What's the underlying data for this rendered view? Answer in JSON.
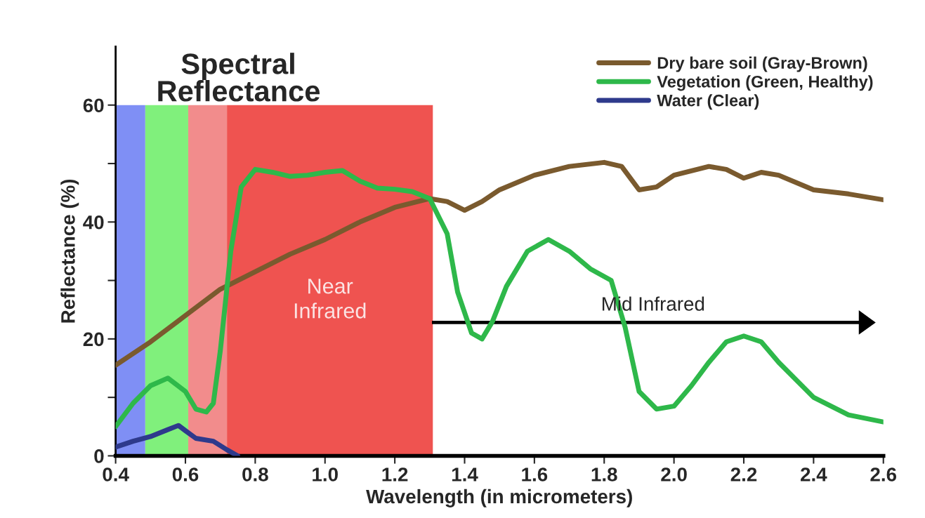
{
  "chart_data": {
    "type": "line",
    "title": "Spectral\nReflectance",
    "xlabel": "Wavelength (in micrometers)",
    "ylabel": "Reflectance (%)",
    "xlim": [
      0.4,
      2.6
    ],
    "xticks": [
      {
        "value": 0.4,
        "label": "0.4"
      },
      {
        "value": 0.6,
        "label": "0.6"
      },
      {
        "value": 0.8,
        "label": "0.8"
      },
      {
        "value": 1.0,
        "label": "1.0"
      },
      {
        "value": 1.2,
        "label": "1.2"
      },
      {
        "value": 1.4,
        "label": "1.4"
      },
      {
        "value": 1.6,
        "label": "1.6"
      },
      {
        "value": 1.8,
        "label": "1.8"
      },
      {
        "value": 2.0,
        "label": "2.0"
      },
      {
        "value": 2.2,
        "label": "2.2"
      },
      {
        "value": 2.4,
        "label": "2.4"
      },
      {
        "value": 2.6,
        "label": "2.6"
      }
    ],
    "ylim": [
      0,
      70
    ],
    "yticks": [
      0,
      {
        "value": 10,
        "label": null
      },
      20,
      {
        "value": 30,
        "label": null
      },
      40,
      {
        "value": 50,
        "label": null
      },
      60
    ],
    "grid": false,
    "legend": "top right",
    "marker": "none",
    "line_style": "solid",
    "bands": [
      {
        "axis": "x",
        "from": 0.4,
        "to": 0.485,
        "label": null,
        "color": "#7f8ff5"
      },
      {
        "axis": "x",
        "from": 0.485,
        "to": 0.608,
        "label": null,
        "color": "#80f07c"
      },
      {
        "axis": "x",
        "from": 0.608,
        "to": 0.719,
        "label": null,
        "color": "#f28c8c"
      },
      {
        "axis": "x",
        "from": 0.719,
        "to": 1.309,
        "label": "Near\nInfrared",
        "color": "#ef5350"
      }
    ],
    "annotations": [
      "Mid Infrared"
    ],
    "series": [
      {
        "name": "Dry bare soil (Gray-Brown)",
        "color": "#7a5a2e",
        "x": [
          0.4,
          0.5,
          0.6,
          0.7,
          0.8,
          0.9,
          1.0,
          1.1,
          1.2,
          1.3,
          1.35,
          1.4,
          1.45,
          1.5,
          1.6,
          1.7,
          1.8,
          1.85,
          1.9,
          1.95,
          2.0,
          2.1,
          2.15,
          2.2,
          2.25,
          2.3,
          2.4,
          2.5,
          2.6
        ],
        "values": [
          15.5,
          19.5,
          24,
          28.5,
          31.5,
          34.5,
          37,
          40,
          42.5,
          44,
          43.5,
          42,
          43.5,
          45.5,
          48,
          49.5,
          50.2,
          49.5,
          45.5,
          46,
          48,
          49.5,
          49,
          47.5,
          48.5,
          48,
          45.5,
          44.8,
          43.8
        ]
      },
      {
        "name": "Vegetation (Green, Healthy)",
        "color": "#2eb84a",
        "x": [
          0.4,
          0.45,
          0.5,
          0.55,
          0.6,
          0.63,
          0.66,
          0.68,
          0.7,
          0.73,
          0.76,
          0.8,
          0.85,
          0.9,
          0.95,
          1.0,
          1.05,
          1.1,
          1.15,
          1.2,
          1.25,
          1.3,
          1.35,
          1.38,
          1.42,
          1.45,
          1.48,
          1.52,
          1.58,
          1.64,
          1.7,
          1.76,
          1.82,
          1.86,
          1.9,
          1.95,
          2.0,
          2.05,
          2.1,
          2.15,
          2.2,
          2.25,
          2.3,
          2.4,
          2.5,
          2.6
        ],
        "values": [
          5,
          9,
          12,
          13.3,
          11,
          8,
          7.5,
          9,
          18,
          35,
          46,
          49,
          48.5,
          47.8,
          48,
          48.5,
          48.8,
          47,
          45.8,
          45.6,
          45.2,
          44,
          38,
          28,
          21,
          20,
          23,
          29,
          35,
          37,
          35,
          32,
          30,
          22,
          11,
          8,
          8.5,
          12,
          16,
          19.5,
          20.5,
          19.5,
          16,
          10,
          7,
          5.8
        ]
      },
      {
        "name": "Water (Clear)",
        "color": "#2e3a8c",
        "x": [
          0.4,
          0.45,
          0.5,
          0.55,
          0.58,
          0.6,
          0.63,
          0.68,
          0.72,
          0.75
        ],
        "values": [
          1.5,
          2.5,
          3.3,
          4.5,
          5.2,
          4.3,
          3,
          2.5,
          1,
          0
        ]
      }
    ]
  }
}
